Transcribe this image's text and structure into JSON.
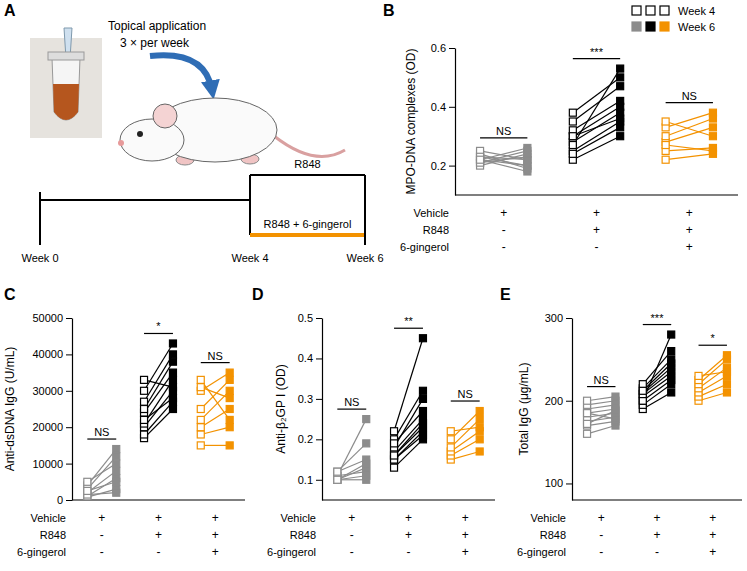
{
  "diagram": {
    "panel": "A",
    "application": "Topical application",
    "frequency": "3 × per week",
    "timeline": {
      "weeks": [
        "Week 0",
        "Week 4",
        "Week 6"
      ],
      "arms": [
        "R848",
        "R848 + 6-gingerol"
      ]
    }
  },
  "key": {
    "series": [
      {
        "name": "Week 4",
        "marker": "open-square"
      },
      {
        "name": "Week 6",
        "marker": "filled-square"
      }
    ],
    "colors": [
      "#8c8c8c",
      "#000000",
      "#f39200"
    ]
  },
  "chart_data": [
    {
      "type": "paired_dot",
      "panel": "B",
      "y_label": "MPO-DNA complexes (OD)",
      "ylim": [
        0.1,
        0.6
      ],
      "yticks": [
        0.2,
        0.4,
        0.6
      ],
      "groups": [
        {
          "color": "#8c8c8c",
          "significance": "NS",
          "week4": [
            0.21,
            0.22,
            0.23,
            0.22,
            0.24,
            0.25,
            0.2,
            0.23,
            0.21,
            0.22
          ],
          "week6": [
            0.23,
            0.2,
            0.22,
            0.26,
            0.19,
            0.22,
            0.24,
            0.2,
            0.25,
            0.18
          ]
        },
        {
          "color": "#000000",
          "significance": "***",
          "week4": [
            0.22,
            0.25,
            0.28,
            0.3,
            0.32,
            0.35,
            0.27,
            0.24,
            0.38,
            0.3
          ],
          "week6": [
            0.3,
            0.35,
            0.38,
            0.4,
            0.42,
            0.47,
            0.53,
            0.33,
            0.5,
            0.36
          ]
        },
        {
          "color": "#f39200",
          "significance": "NS",
          "week4": [
            0.22,
            0.25,
            0.28,
            0.3,
            0.33,
            0.35,
            0.27
          ],
          "week6": [
            0.24,
            0.26,
            0.33,
            0.36,
            0.38,
            0.3,
            0.25
          ]
        }
      ],
      "condition_rows": [
        {
          "label": "Vehicle",
          "signs": [
            "+",
            "+",
            "+"
          ]
        },
        {
          "label": "R848",
          "signs": [
            "-",
            "+",
            "+"
          ]
        },
        {
          "label": "6-gingerol",
          "signs": [
            "-",
            "-",
            "+"
          ]
        }
      ]
    },
    {
      "type": "paired_dot",
      "panel": "C",
      "y_label": "Anti-dsDNA IgG (U/mL)",
      "ylim": [
        0,
        50000
      ],
      "yticks": [
        0,
        10000,
        20000,
        30000,
        40000,
        50000
      ],
      "groups": [
        {
          "color": "#8c8c8c",
          "significance": "NS",
          "week4": [
            800,
            1000,
            2000,
            3000,
            4000,
            5000,
            1500,
            2500
          ],
          "week6": [
            3000,
            6000,
            8000,
            12000,
            14000,
            10000,
            2000,
            5000
          ]
        },
        {
          "color": "#000000",
          "significance": "*",
          "week4": [
            17000,
            18000,
            20000,
            21000,
            24000,
            25000,
            27000,
            30000,
            33000,
            22000
          ],
          "week6": [
            25000,
            27000,
            30000,
            33000,
            35000,
            38000,
            40000,
            43000,
            31000,
            28000
          ]
        },
        {
          "color": "#f39200",
          "significance": "NS",
          "week4": [
            15000,
            18000,
            20000,
            22000,
            25000,
            30000,
            31000,
            33000
          ],
          "week6": [
            15000,
            20000,
            25000,
            30000,
            33000,
            35000,
            28000,
            22000
          ]
        }
      ],
      "condition_rows": [
        {
          "label": "Vehicle",
          "signs": [
            "+",
            "+",
            "+"
          ]
        },
        {
          "label": "R848",
          "signs": [
            "-",
            "+",
            "+"
          ]
        },
        {
          "label": "6-gingerol",
          "signs": [
            "-",
            "-",
            "+"
          ]
        }
      ]
    },
    {
      "type": "paired_dot",
      "panel": "D",
      "y_label": "Anti-β₂GP I (OD)",
      "ylim": [
        0.05,
        0.5
      ],
      "yticks": [
        0.1,
        0.2,
        0.3,
        0.4,
        0.5
      ],
      "groups": [
        {
          "color": "#8c8c8c",
          "significance": "NS",
          "week4": [
            0.1,
            0.11,
            0.1,
            0.12,
            0.1,
            0.11,
            0.1,
            0.12
          ],
          "week6": [
            0.1,
            0.12,
            0.13,
            0.15,
            0.11,
            0.25,
            0.14,
            0.19
          ]
        },
        {
          "color": "#000000",
          "significance": "**",
          "week4": [
            0.13,
            0.15,
            0.16,
            0.17,
            0.18,
            0.2,
            0.22,
            0.15,
            0.19,
            0.16
          ],
          "week6": [
            0.2,
            0.22,
            0.24,
            0.25,
            0.3,
            0.32,
            0.45,
            0.21,
            0.27,
            0.23
          ]
        },
        {
          "color": "#f39200",
          "significance": "NS",
          "week4": [
            0.15,
            0.16,
            0.17,
            0.18,
            0.2,
            0.22
          ],
          "week6": [
            0.17,
            0.2,
            0.22,
            0.25,
            0.27,
            0.23
          ]
        }
      ],
      "condition_rows": [
        {
          "label": "Vehicle",
          "signs": [
            "+",
            "+",
            "+"
          ]
        },
        {
          "label": "R848",
          "signs": [
            "-",
            "+",
            "+"
          ]
        },
        {
          "label": "6-gingerol",
          "signs": [
            "-",
            "-",
            "+"
          ]
        }
      ]
    },
    {
      "type": "paired_dot",
      "panel": "E",
      "y_label": "Total IgG (μg/mL)",
      "ylim": [
        80,
        300
      ],
      "yticks": [
        100,
        200,
        300
      ],
      "groups": [
        {
          "color": "#8c8c8c",
          "significance": "NS",
          "week4": [
            160,
            170,
            175,
            180,
            185,
            190,
            195,
            200,
            185,
            172
          ],
          "week6": [
            170,
            175,
            180,
            185,
            190,
            195,
            200,
            205,
            178,
            188
          ]
        },
        {
          "color": "#000000",
          "significance": "***",
          "week4": [
            190,
            195,
            200,
            205,
            210,
            215,
            220,
            200,
            208,
            212
          ],
          "week6": [
            210,
            220,
            225,
            230,
            240,
            250,
            260,
            280,
            235,
            245
          ]
        },
        {
          "color": "#f39200",
          "significance": "*",
          "week4": [
            200,
            205,
            210,
            215,
            220,
            225,
            230
          ],
          "week6": [
            210,
            220,
            230,
            240,
            250,
            255,
            235
          ]
        }
      ],
      "condition_rows": [
        {
          "label": "Vehicle",
          "signs": [
            "+",
            "+",
            "+"
          ]
        },
        {
          "label": "R848",
          "signs": [
            "-",
            "+",
            "+"
          ]
        },
        {
          "label": "6-gingerol",
          "signs": [
            "-",
            "-",
            "+"
          ]
        }
      ]
    }
  ]
}
